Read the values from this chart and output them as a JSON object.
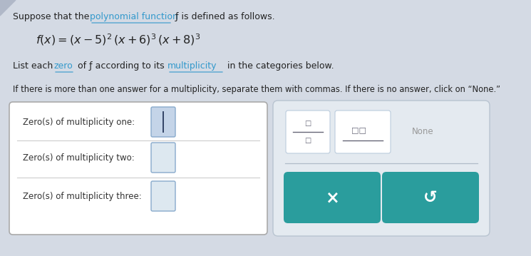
{
  "bg_color": "#d4dae4",
  "box_bg": "#ffffff",
  "box_border": "#aaaaaa",
  "panel_bg": "#e4eaf0",
  "panel_border": "#b8c4d0",
  "teal_color": "#2a9d9d",
  "underline_color": "#3399cc",
  "text_color": "#222222",
  "label_color": "#333333",
  "none_color": "#999999",
  "input_box_color": "#dde8f0",
  "input_box_border": "#88aacc",
  "row_labels": [
    "Zero(s) of multiplicity one:",
    "Zero(s) of multiplicity two:",
    "Zero(s) of multiplicity three:"
  ]
}
